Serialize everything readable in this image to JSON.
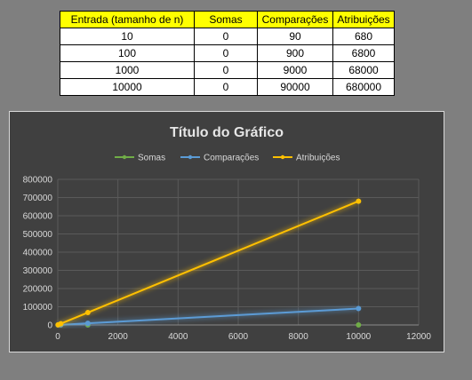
{
  "table": {
    "headers": [
      "Entrada (tamanho de n)",
      "Somas",
      "Comparações",
      "Atribuições"
    ],
    "rows": [
      [
        "10",
        "0",
        "90",
        "680"
      ],
      [
        "100",
        "0",
        "900",
        "6800"
      ],
      [
        "1000",
        "0",
        "9000",
        "68000"
      ],
      [
        "10000",
        "0",
        "90000",
        "680000"
      ]
    ]
  },
  "chart_data": {
    "type": "line",
    "title": "Título do Gráfico",
    "xlabel": "",
    "ylabel": "",
    "x": [
      10,
      100,
      1000,
      10000
    ],
    "xlim": [
      0,
      12000
    ],
    "ylim": [
      0,
      800000
    ],
    "xticks": [
      "0",
      "2000",
      "4000",
      "6000",
      "8000",
      "10000",
      "12000"
    ],
    "yticks": [
      "0",
      "100000",
      "200000",
      "300000",
      "400000",
      "500000",
      "600000",
      "700000",
      "800000"
    ],
    "grid": true,
    "legend_position": "top",
    "series": [
      {
        "name": "Somas",
        "values": [
          0,
          0,
          0,
          0
        ],
        "color": "#70ad47"
      },
      {
        "name": "Comparações",
        "values": [
          90,
          900,
          9000,
          90000
        ],
        "color": "#5b9bd5"
      },
      {
        "name": "Atribuições",
        "values": [
          680,
          6800,
          68000,
          680000
        ],
        "color": "#ffc000"
      }
    ]
  }
}
